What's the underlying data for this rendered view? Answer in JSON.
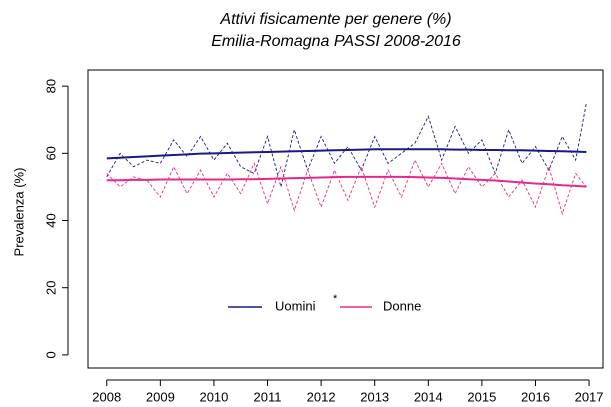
{
  "chart_data": {
    "type": "line",
    "title": "Attivi fisicamente per genere (%)",
    "subtitle": "Emilia-Romagna PASSI 2008-2016",
    "y_label": "Prevalenza (%)",
    "annotation": "*",
    "x": [
      2008,
      2008.25,
      2008.5,
      2008.75,
      2009,
      2009.25,
      2009.5,
      2009.75,
      2010,
      2010.25,
      2010.5,
      2010.75,
      2011,
      2011.25,
      2011.5,
      2011.75,
      2012,
      2012.25,
      2012.5,
      2012.75,
      2013,
      2013.25,
      2013.5,
      2013.75,
      2014,
      2014.25,
      2014.5,
      2014.75,
      2015,
      2015.25,
      2015.5,
      2015.75,
      2016,
      2016.25,
      2016.5,
      2016.75,
      2016.95
    ],
    "series": [
      {
        "name": "Uomini",
        "color": "#1a1a80",
        "values": [
          53,
          60,
          56,
          58,
          57,
          64,
          59,
          65,
          58,
          63,
          56,
          54,
          65,
          50,
          67,
          55,
          65,
          57,
          62,
          55,
          65,
          57,
          60,
          63,
          71,
          58,
          68,
          60,
          64,
          54,
          67,
          57,
          62,
          55,
          65,
          58,
          75
        ],
        "trend": [
          58.5,
          58.7,
          58.9,
          59.1,
          59.3,
          59.5,
          59.7,
          59.9,
          60.0,
          60.1,
          60.2,
          60.3,
          60.4,
          60.5,
          60.6,
          60.7,
          60.8,
          60.9,
          61.0,
          61.1,
          61.2,
          61.2,
          61.2,
          61.2,
          61.2,
          61.2,
          61.1,
          61.1,
          61.0,
          61.0,
          60.9,
          60.9,
          60.8,
          60.7,
          60.6,
          60.5,
          60.4
        ]
      },
      {
        "name": "Donne",
        "color": "#e6288c",
        "values": [
          54,
          50,
          53,
          52,
          47,
          56,
          48,
          55,
          47,
          54,
          48,
          57,
          45,
          56,
          43,
          55,
          44,
          55,
          46,
          56,
          44,
          55,
          47,
          58,
          50,
          57,
          48,
          56,
          50,
          54,
          47,
          52,
          44,
          56,
          42,
          54,
          50
        ],
        "trend": [
          52.0,
          52.0,
          52.1,
          52.1,
          52.2,
          52.2,
          52.2,
          52.2,
          52.2,
          52.2,
          52.3,
          52.3,
          52.4,
          52.5,
          52.6,
          52.7,
          52.8,
          52.9,
          53.0,
          53.0,
          53.0,
          53.0,
          53.0,
          52.9,
          52.8,
          52.7,
          52.5,
          52.3,
          52.1,
          51.9,
          51.6,
          51.3,
          51.0,
          50.8,
          50.5,
          50.3,
          50.1
        ]
      }
    ],
    "xlim": [
      2007.65,
      2017.26
    ],
    "ylim": [
      -3.9,
      84.8
    ],
    "xticks": [
      2008,
      2009,
      2010,
      2011,
      2012,
      2013,
      2014,
      2015,
      2016,
      2017
    ],
    "yticks": [
      0,
      20,
      40,
      60,
      80
    ]
  }
}
